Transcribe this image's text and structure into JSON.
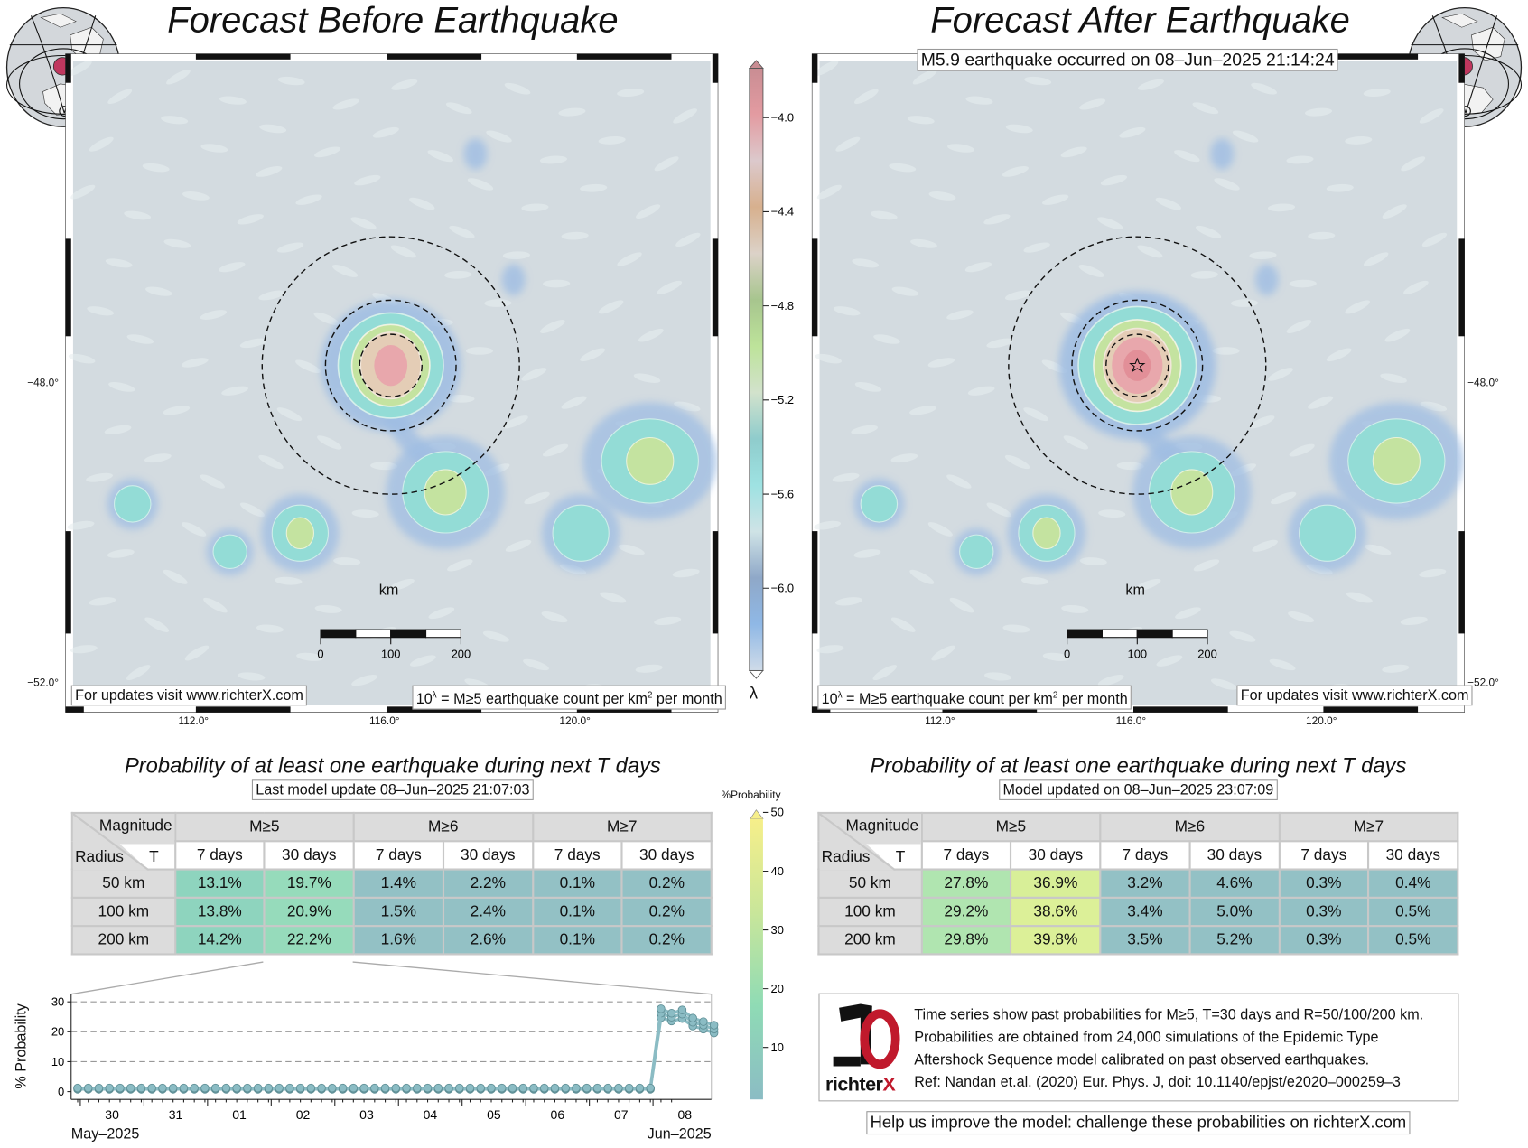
{
  "left_panel": {
    "title": "Forecast Before Earthquake",
    "footer_link": "For updates visit www.richterX.com",
    "legend_note": "10^λ = M≥5 earthquake count per km² per month",
    "legend_note_base": "10",
    "legend_note_sup": "λ",
    "legend_note_mid": " = M≥5 earthquake count per km",
    "legend_note_sup2": "2",
    "legend_note_end": " per month"
  },
  "right_panel": {
    "title": "Forecast After Earthquake",
    "event_label": "M5.9 earthquake occurred on 08–Jun–2025 21:14:24",
    "footer_link": "For updates visit www.richterX.com"
  },
  "map": {
    "lon_ticks": [
      "112.0°",
      "116.0°",
      "120.0°"
    ],
    "lat_ticks": [
      "−48.0°",
      "−52.0°"
    ],
    "scalebar_unit": "km",
    "scalebar_labels": [
      "0",
      "100",
      "200"
    ],
    "circle_radii_km": [
      50,
      100,
      200
    ]
  },
  "colorbar": {
    "label": "λ",
    "ticks": [
      "−4.0",
      "−4.4",
      "−4.8",
      "−5.2",
      "−5.6",
      "−6.0"
    ],
    "tick_values": [
      -4.0,
      -4.4,
      -4.8,
      -5.2,
      -5.6,
      -6.0
    ],
    "range": [
      -6.35,
      -3.79
    ],
    "colors": [
      "#c98d93",
      "#e39ba1",
      "#dcc9cc",
      "#d7b08e",
      "#dcd2c8",
      "#a7c58e",
      "#bde39a",
      "#d2e2cc",
      "#8fcccc",
      "#9ee2e2",
      "#cfe3e6",
      "#8fa8c8",
      "#8fb8e6",
      "#cfdbe8"
    ]
  },
  "prob_colorbar": {
    "label": "%Probability",
    "ticks": [
      "50",
      "40",
      "30",
      "20",
      "10"
    ],
    "tick_values": [
      50,
      40,
      30,
      20,
      10
    ],
    "colors": [
      "#f6ef8a",
      "#c9e69a",
      "#8fdbb5",
      "#8bbcc4"
    ]
  },
  "before_table": {
    "title": "Probability of at least one earthquake during next T days",
    "subtitle": "Last model update 08–Jun–2025 21:07:03",
    "corner_top": "Magnitude",
    "corner_left": "Radius",
    "corner_right": "T",
    "magnitudes": [
      "M≥5",
      "M≥6",
      "M≥7"
    ],
    "periods": [
      "7 days",
      "30 days",
      "7 days",
      "30 days",
      "7 days",
      "30 days"
    ],
    "rows": [
      {
        "radius": "50 km",
        "values": [
          "13.1%",
          "19.7%",
          "1.4%",
          "2.2%",
          "0.1%",
          "0.2%"
        ],
        "colors": [
          "#8ed4be",
          "#96dbbb",
          "#93c1c5",
          "#93c1c5",
          "#93c1c5",
          "#93c1c5"
        ]
      },
      {
        "radius": "100 km",
        "values": [
          "13.8%",
          "20.9%",
          "1.5%",
          "2.4%",
          "0.1%",
          "0.2%"
        ],
        "colors": [
          "#8ed4be",
          "#96dbbb",
          "#93c1c5",
          "#93c1c5",
          "#93c1c5",
          "#93c1c5"
        ]
      },
      {
        "radius": "200 km",
        "values": [
          "14.2%",
          "22.2%",
          "1.6%",
          "2.6%",
          "0.1%",
          "0.2%"
        ],
        "colors": [
          "#8ed4be",
          "#96dbbb",
          "#93c1c5",
          "#93c1c5",
          "#93c1c5",
          "#93c1c5"
        ]
      }
    ]
  },
  "after_table": {
    "title": "Probability of at least one earthquake during next T days",
    "subtitle": "Model updated on 08–Jun–2025 23:07:09",
    "corner_top": "Magnitude",
    "corner_left": "Radius",
    "corner_right": "T",
    "magnitudes": [
      "M≥5",
      "M≥6",
      "M≥7"
    ],
    "periods": [
      "7 days",
      "30 days",
      "7 days",
      "30 days",
      "7 days",
      "30 days"
    ],
    "rows": [
      {
        "radius": "50 km",
        "values": [
          "27.8%",
          "36.9%",
          "3.2%",
          "4.6%",
          "0.3%",
          "0.4%"
        ],
        "colors": [
          "#b0e5b0",
          "#d8ef98",
          "#93c1c5",
          "#93c1c5",
          "#93c1c5",
          "#93c1c5"
        ]
      },
      {
        "radius": "100 km",
        "values": [
          "29.2%",
          "38.6%",
          "3.4%",
          "5.0%",
          "0.3%",
          "0.5%"
        ],
        "colors": [
          "#b0e5b0",
          "#dcf098",
          "#93c1c5",
          "#93c1c5",
          "#93c1c5",
          "#93c1c5"
        ]
      },
      {
        "radius": "200 km",
        "values": [
          "29.8%",
          "39.8%",
          "3.5%",
          "5.2%",
          "0.3%",
          "0.5%"
        ],
        "colors": [
          "#b0e5b0",
          "#dcf098",
          "#93c1c5",
          "#93c1c5",
          "#93c1c5",
          "#93c1c5"
        ]
      }
    ]
  },
  "chart_data": {
    "type": "line",
    "ylabel": "% Probability",
    "ylim": [
      0,
      30
    ],
    "yticks": [
      "0",
      "10",
      "20",
      "30"
    ],
    "ytick_values": [
      0,
      10,
      20,
      30
    ],
    "xticks": [
      "30",
      "31",
      "01",
      "02",
      "03",
      "04",
      "05",
      "06",
      "07",
      "08"
    ],
    "xlabel_left": "May–2025",
    "xlabel_right": "Jun–2025",
    "grid": "horizontal dashed",
    "color": "#8bbcc4",
    "x": [
      "2025-05-29 23:00",
      "2025-05-30 03:00",
      "2025-05-30 07:00",
      "2025-05-30 11:00",
      "2025-05-30 15:00",
      "2025-05-30 19:00",
      "2025-05-30 23:00",
      "2025-05-31 03:00",
      "2025-05-31 07:00",
      "2025-05-31 11:00",
      "2025-05-31 15:00",
      "2025-05-31 19:00",
      "2025-05-31 23:00",
      "2025-06-01 03:00",
      "2025-06-01 07:00",
      "2025-06-01 11:00",
      "2025-06-01 15:00",
      "2025-06-01 19:00",
      "2025-06-01 23:00",
      "2025-06-02 03:00",
      "2025-06-02 07:00",
      "2025-06-02 11:00",
      "2025-06-02 15:00",
      "2025-06-02 19:00",
      "2025-06-02 23:00",
      "2025-06-03 03:00",
      "2025-06-03 07:00",
      "2025-06-03 11:00",
      "2025-06-03 15:00",
      "2025-06-03 19:00",
      "2025-06-03 23:00",
      "2025-06-04 03:00",
      "2025-06-04 07:00",
      "2025-06-04 11:00",
      "2025-06-04 15:00",
      "2025-06-04 19:00",
      "2025-06-04 23:00",
      "2025-06-05 03:00",
      "2025-06-05 07:00",
      "2025-06-05 11:00",
      "2025-06-05 15:00",
      "2025-06-05 19:00",
      "2025-06-05 23:00",
      "2025-06-06 03:00",
      "2025-06-06 07:00",
      "2025-06-06 11:00",
      "2025-06-06 15:00",
      "2025-06-06 19:00",
      "2025-06-06 23:00",
      "2025-06-07 03:00",
      "2025-06-07 07:00",
      "2025-06-07 11:00",
      "2025-06-07 15:00",
      "2025-06-07 19:00",
      "2025-06-07 23:00",
      "2025-06-08 03:00",
      "2025-06-08 07:00",
      "2025-06-08 11:00",
      "2025-06-08 15:00",
      "2025-06-08 19:00",
      "2025-06-08 23:00"
    ],
    "series": [
      {
        "values": [
          0.8,
          0.8,
          0.8,
          0.8,
          0.8,
          0.8,
          0.8,
          0.8,
          0.8,
          0.8,
          0.8,
          0.8,
          0.8,
          0.8,
          0.8,
          0.8,
          0.8,
          0.8,
          0.8,
          0.8,
          0.8,
          0.8,
          0.8,
          0.8,
          0.8,
          0.8,
          0.8,
          0.8,
          0.8,
          0.8,
          0.8,
          0.8,
          0.8,
          0.8,
          0.8,
          0.8,
          0.8,
          0.8,
          0.8,
          0.8,
          0.8,
          0.8,
          0.8,
          0.8,
          0.8,
          0.8,
          0.8,
          0.8,
          0.8,
          0.8,
          0.8,
          0.8,
          0.8,
          0.8,
          0.8,
          24.7,
          23.6,
          24.4,
          21.9,
          20.9,
          19.6
        ]
      },
      {
        "values": [
          1.0,
          1.0,
          1.0,
          1.0,
          1.0,
          1.0,
          1.0,
          1.0,
          1.0,
          1.0,
          1.0,
          1.0,
          1.0,
          1.0,
          1.0,
          1.0,
          1.0,
          1.0,
          1.0,
          1.0,
          1.0,
          1.0,
          1.0,
          1.0,
          1.0,
          1.0,
          1.0,
          1.0,
          1.0,
          1.0,
          1.0,
          1.0,
          1.0,
          1.0,
          1.0,
          1.0,
          1.0,
          1.0,
          1.0,
          1.0,
          1.0,
          1.0,
          1.0,
          1.0,
          1.0,
          1.0,
          1.0,
          1.0,
          1.0,
          1.0,
          1.0,
          1.0,
          1.0,
          1.0,
          1.0,
          26.2,
          24.9,
          25.9,
          23.2,
          22.2,
          20.9
        ]
      },
      {
        "values": [
          1.2,
          1.2,
          1.2,
          1.2,
          1.2,
          1.2,
          1.2,
          1.2,
          1.2,
          1.2,
          1.2,
          1.2,
          1.2,
          1.2,
          1.2,
          1.2,
          1.2,
          1.2,
          1.2,
          1.2,
          1.2,
          1.2,
          1.2,
          1.2,
          1.2,
          1.2,
          1.2,
          1.2,
          1.2,
          1.2,
          1.2,
          1.2,
          1.2,
          1.2,
          1.2,
          1.2,
          1.2,
          1.2,
          1.2,
          1.2,
          1.2,
          1.2,
          1.2,
          1.2,
          1.2,
          1.2,
          1.2,
          1.2,
          1.2,
          1.2,
          1.2,
          1.2,
          1.2,
          1.2,
          1.2,
          27.7,
          26.2,
          27.3,
          24.6,
          23.4,
          22.2
        ]
      }
    ]
  },
  "info_box": {
    "logo_text": "richterX",
    "lines": [
      "Time series show past probabilities for M≥5, T=30 days and R=50/100/200 km.",
      "Probabilities are obtained from 24,000 simulations of the Epidemic Type",
      "Aftershock Sequence model calibrated on past observed earthquakes.",
      "Ref: Nandan et.al. (2020) Eur. Phys. J, doi: 10.1140/epjst/e2020–000259–3"
    ]
  },
  "help_link": "Help us improve the model: challenge these probabilities on richterX.com",
  "colors": {
    "brand_red": "#c0192c",
    "globe_marker": "#c0375e",
    "land_ocean": "#d3dbe0"
  }
}
